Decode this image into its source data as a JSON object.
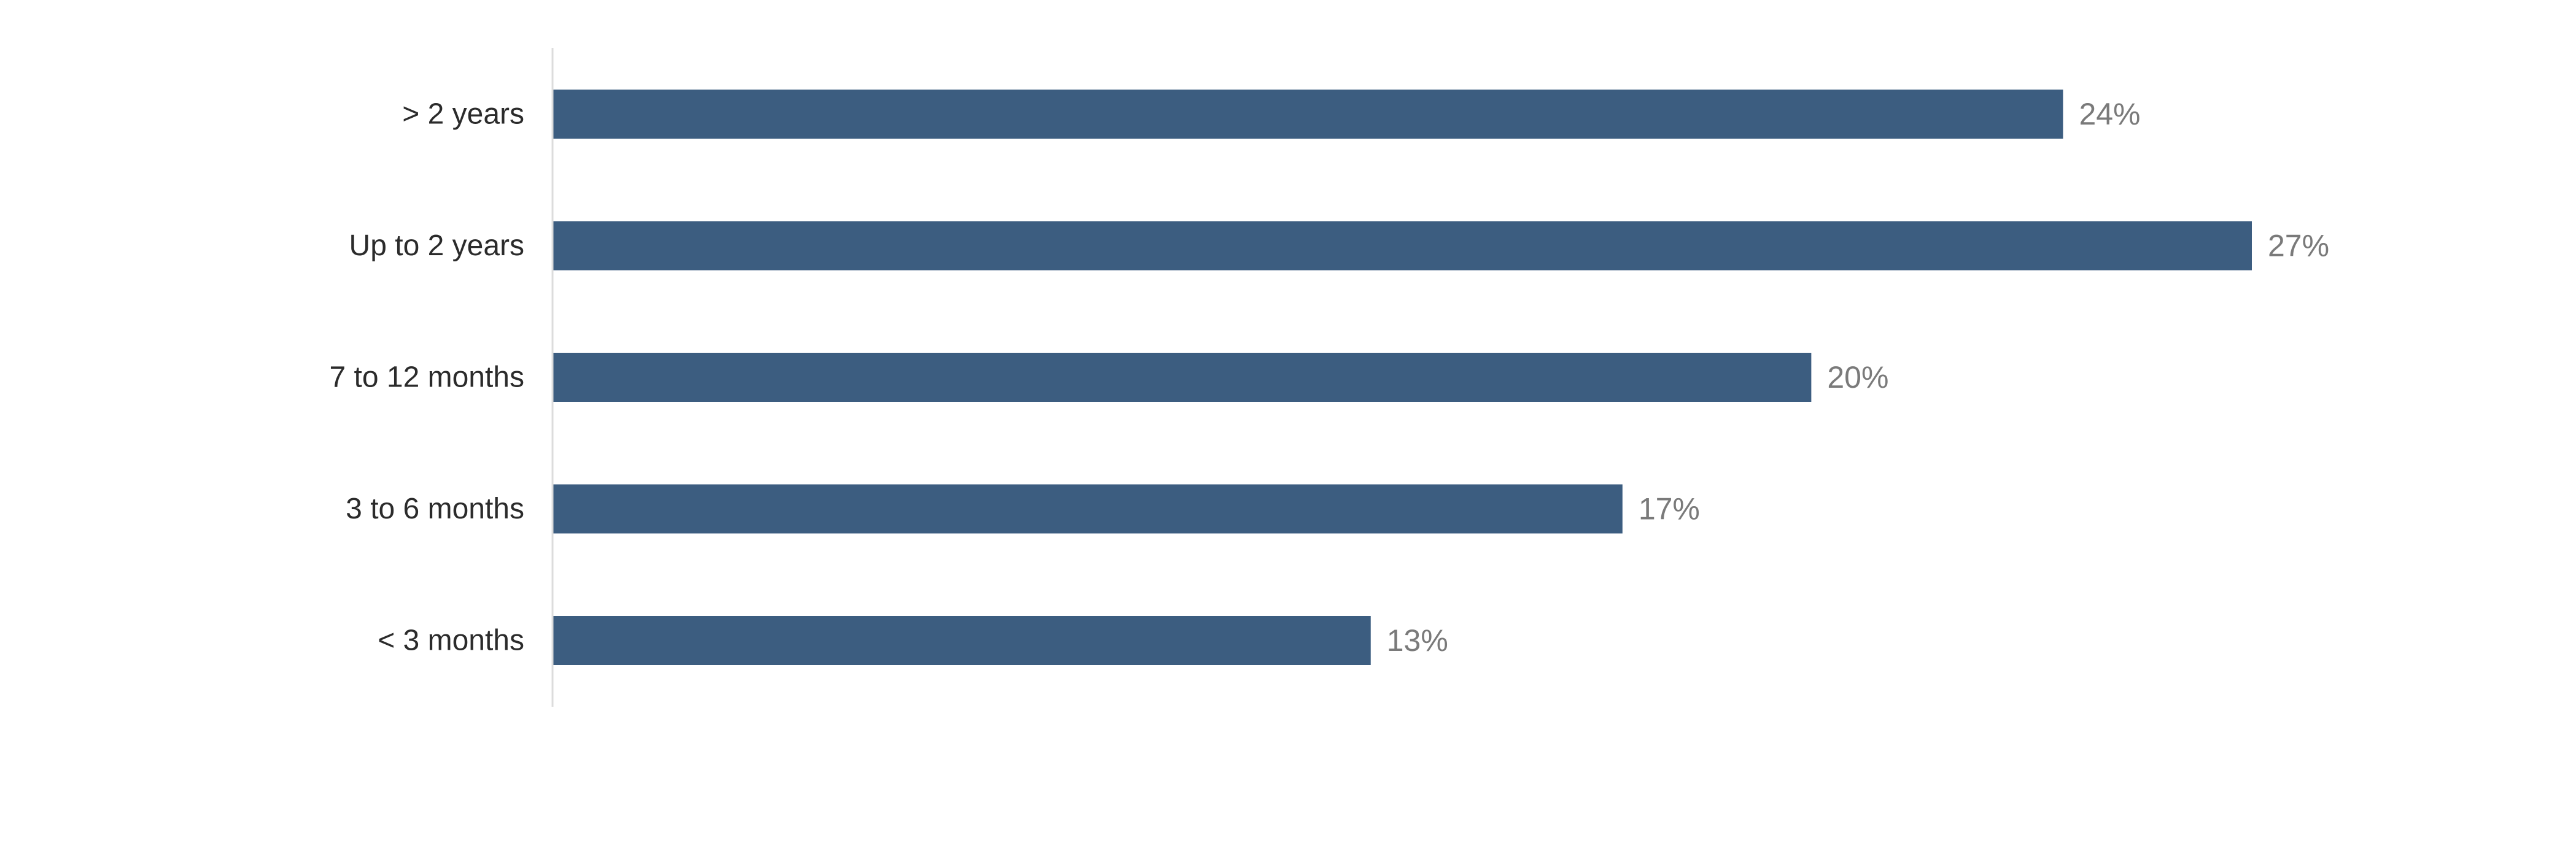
{
  "chart_data": {
    "type": "bar",
    "orientation": "horizontal",
    "categories": [
      "> 2 years",
      "Up to 2 years",
      "7 to 12 months",
      "3 to 6 months",
      "< 3 months"
    ],
    "values": [
      24,
      27,
      20,
      17,
      13
    ],
    "value_labels": [
      "24%",
      "27%",
      "20%",
      "17%",
      "13%"
    ],
    "unit": "%",
    "xlim": [
      0,
      27
    ],
    "grid": false,
    "legend": "none",
    "colors": {
      "bar": "#3c5d80",
      "category_text": "#2b2b2b",
      "value_text": "#7a7a7a",
      "axis": "#dcdcdc"
    }
  }
}
